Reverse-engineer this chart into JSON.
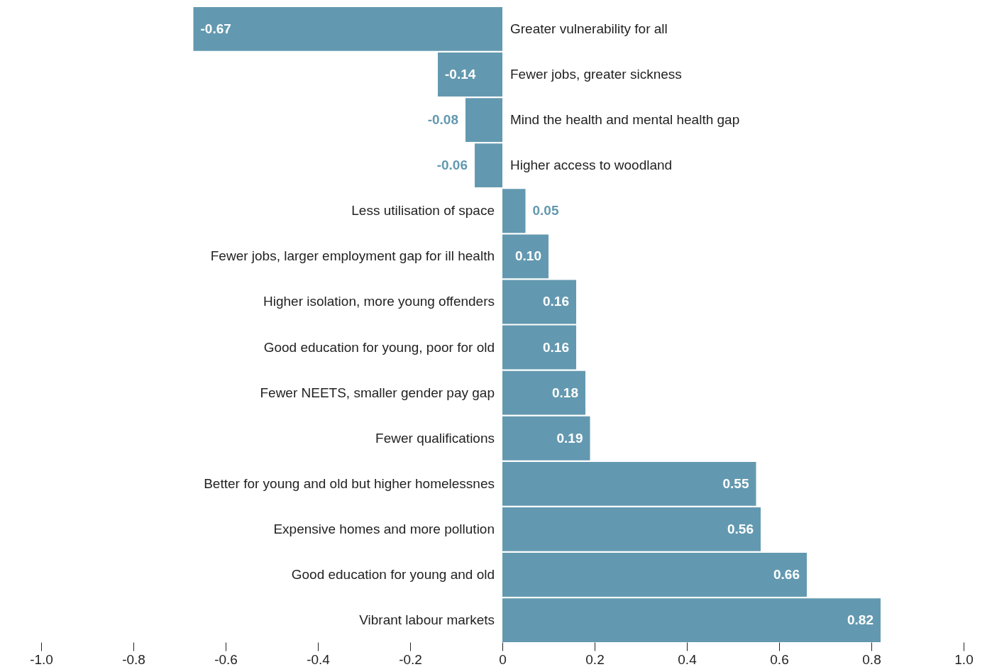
{
  "chart_data": {
    "type": "bar",
    "orientation": "horizontal",
    "categories": [
      "Greater vulnerability for all",
      "Fewer jobs, greater sickness",
      "Mind the health and mental health gap",
      "Higher access to woodland",
      "Less utilisation of space",
      "Fewer jobs, larger employment gap for ill health",
      "Higher isolation, more young offenders",
      "Good education for young, poor for old",
      "Fewer NEETS, smaller gender pay gap",
      "Fewer qualifications",
      "Better for young and old but higher homelessnes",
      "Expensive homes and more pollution",
      "Good education for young and old",
      "Vibrant labour markets"
    ],
    "values": [
      -0.67,
      -0.14,
      -0.08,
      -0.06,
      0.05,
      0.1,
      0.16,
      0.16,
      0.18,
      0.19,
      0.55,
      0.56,
      0.66,
      0.82
    ],
    "color": "#6399b0",
    "xlim": [
      -1.0,
      1.0
    ],
    "xticks": [
      {
        "value": -1.0,
        "label": "-1.0"
      },
      {
        "value": -0.8,
        "label": "-0.8"
      },
      {
        "value": -0.6,
        "label": "-0.6"
      },
      {
        "value": -0.4,
        "label": "-0.4"
      },
      {
        "value": -0.2,
        "label": "-0.2"
      },
      0,
      0.2,
      0.4,
      0.6,
      0.8,
      {
        "value": 1.0,
        "label": "1.0"
      }
    ],
    "value_labels": [
      "-0.67",
      "-0.14",
      "-0.08",
      "-0.06",
      "0.05",
      "0.10",
      "0.16",
      "0.16",
      "0.18",
      "0.19",
      "0.55",
      "0.56",
      "0.66",
      "0.82"
    ],
    "grid": false
  }
}
